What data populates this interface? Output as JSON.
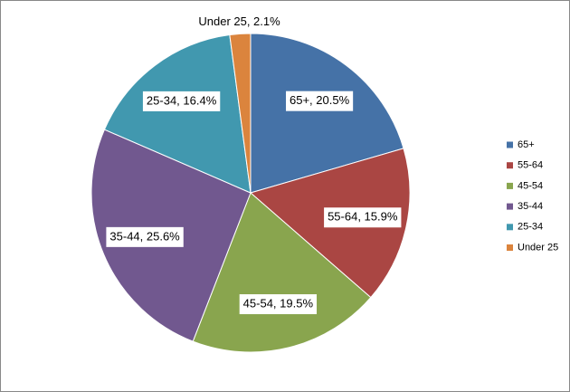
{
  "chart_data": {
    "type": "pie",
    "categories": [
      "65+",
      "55-64",
      "45-54",
      "35-44",
      "25-34",
      "Under 25"
    ],
    "values": [
      20.5,
      15.9,
      19.5,
      25.6,
      16.4,
      2.1
    ],
    "value_labels": [
      "65+, 20.5%",
      "55-64, 15.9%",
      "45-54, 19.5%",
      "35-44, 25.6%",
      "25-34, 16.4%",
      "Under 25, 2.1%"
    ],
    "colors": [
      "#4572a7",
      "#aa4643",
      "#89a54e",
      "#71588f",
      "#4198af",
      "#db843d"
    ],
    "legend": "right"
  }
}
